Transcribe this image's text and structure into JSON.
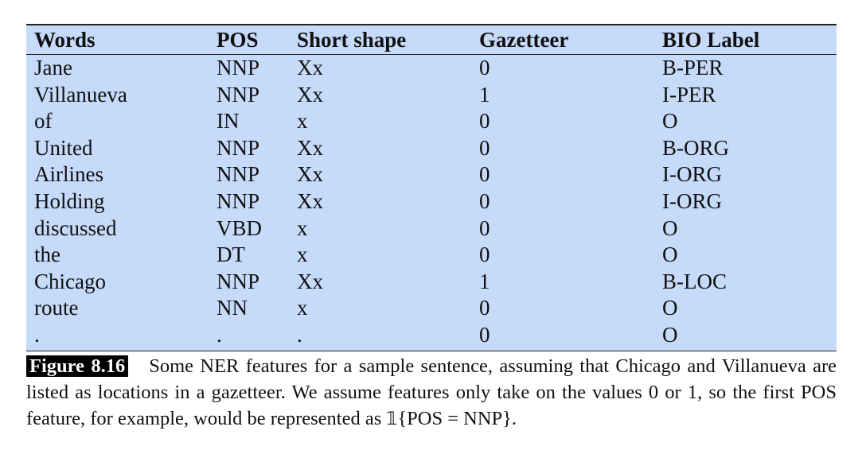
{
  "table": {
    "headers": [
      "Words",
      "POS",
      "Short shape",
      "Gazetteer",
      "BIO Label"
    ],
    "rows": [
      [
        "Jane",
        "NNP",
        "Xx",
        "0",
        "B-PER"
      ],
      [
        "Villanueva",
        "NNP",
        "Xx",
        "1",
        "I-PER"
      ],
      [
        "of",
        "IN",
        "x",
        "0",
        "O"
      ],
      [
        "United",
        "NNP",
        "Xx",
        "0",
        "B-ORG"
      ],
      [
        "Airlines",
        "NNP",
        "Xx",
        "0",
        "I-ORG"
      ],
      [
        "Holding",
        "NNP",
        "Xx",
        "0",
        "I-ORG"
      ],
      [
        "discussed",
        "VBD",
        "x",
        "0",
        "O"
      ],
      [
        "the",
        "DT",
        "x",
        "0",
        "O"
      ],
      [
        "Chicago",
        "NNP",
        "Xx",
        "1",
        "B-LOC"
      ],
      [
        "route",
        "NN",
        "x",
        "0",
        "O"
      ],
      [
        ".",
        ".",
        ".",
        "0",
        "O"
      ]
    ],
    "background_color": "#c6dafa"
  },
  "caption": {
    "label": "Figure 8.16",
    "text_before": "Some NER features for a sample sentence, assuming that Chicago and Villanueva are listed as locations in a gazetteer. We assume features only take on the values 0 or 1, so the first POS feature, for example, would be represented as ",
    "indicator_symbol": "𝟙",
    "text_after": "{POS = NNP}."
  }
}
